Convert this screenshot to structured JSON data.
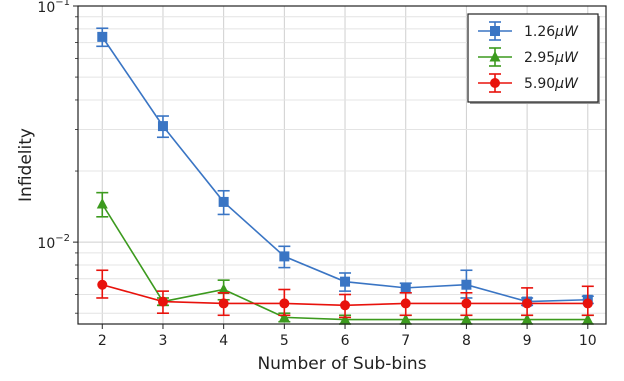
{
  "chart_data": {
    "type": "line",
    "xlabel": "Number of Sub-bins",
    "ylabel": "Infidelity",
    "x": [
      2,
      3,
      4,
      5,
      6,
      7,
      8,
      9,
      10
    ],
    "xlim": [
      1.6,
      10.3
    ],
    "ylim": [
      0.0045,
      0.1
    ],
    "yscale": "log",
    "grid": true,
    "legend_position": "top-right",
    "xticks": [
      "2",
      "3",
      "4",
      "5",
      "6",
      "7",
      "8",
      "9",
      "10"
    ],
    "yticks": [
      {
        "value": 0.1,
        "base": "10",
        "exponent": "−1"
      },
      {
        "value": 0.01,
        "base": "10",
        "exponent": "−2"
      }
    ],
    "series": [
      {
        "name": "1.26",
        "unit": "μW",
        "color": "#3a75c4",
        "marker": "square",
        "values": [
          0.074,
          0.031,
          0.0148,
          0.0087,
          0.0068,
          0.0064,
          0.0066,
          0.0056,
          0.0057
        ],
        "err_low": [
          0.0065,
          0.0032,
          0.0017,
          0.0009,
          0.0006,
          0.0003,
          0.0008,
          0.0002,
          0.0002
        ],
        "err_high": [
          0.0065,
          0.0032,
          0.0017,
          0.0009,
          0.0006,
          0.0003,
          0.001,
          0.0002,
          0.0002
        ]
      },
      {
        "name": "2.95",
        "unit": "μW",
        "color": "#3c9a1e",
        "marker": "triangle",
        "values": [
          0.0145,
          0.0056,
          0.0063,
          0.0048,
          0.0047,
          0.0047,
          0.0047,
          0.0047,
          0.0047
        ],
        "err_low": [
          0.0017,
          0.0002,
          0.0006,
          0.0002,
          0.0002,
          0.0002,
          0.0002,
          0.0002,
          0.0002
        ],
        "err_high": [
          0.0017,
          0.0002,
          0.0006,
          0.0002,
          0.0002,
          0.0002,
          0.0002,
          0.0002,
          0.0002
        ]
      },
      {
        "name": "5.90",
        "unit": "μW",
        "color": "#e8120c",
        "marker": "circle",
        "values": [
          0.0066,
          0.0056,
          0.0055,
          0.0055,
          0.0054,
          0.0055,
          0.0055,
          0.0055,
          0.0055
        ],
        "err_low": [
          0.0008,
          0.0006,
          0.0006,
          0.0006,
          0.0006,
          0.0006,
          0.0006,
          0.0006,
          0.0006
        ],
        "err_high": [
          0.001,
          0.0006,
          0.0006,
          0.0008,
          0.0006,
          0.0006,
          0.0006,
          0.0009,
          0.001
        ]
      }
    ]
  }
}
